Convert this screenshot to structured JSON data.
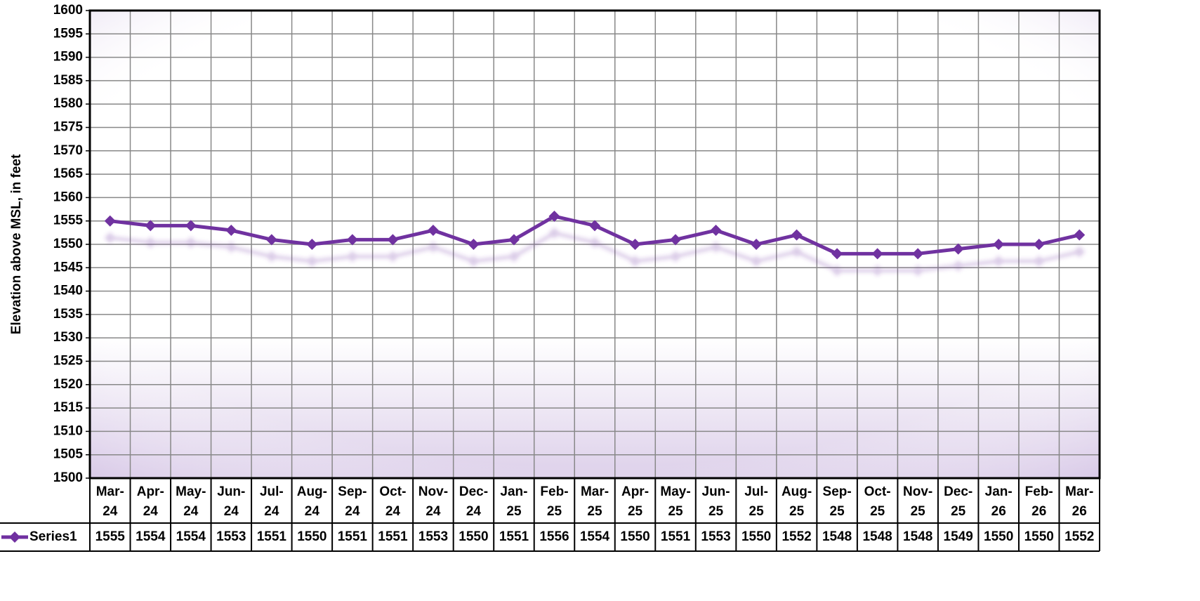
{
  "chart_data": {
    "type": "line",
    "y_label": "Elevation above MSL, in feet",
    "categories": [
      "Mar-24",
      "Apr-24",
      "May-24",
      "Jun-24",
      "Jul-24",
      "Aug-24",
      "Sep-24",
      "Oct-24",
      "Nov-24",
      "Dec-24",
      "Jan-25",
      "Feb-25",
      "Mar-25",
      "Apr-25",
      "May-25",
      "Jun-25",
      "Jul-25",
      "Aug-25",
      "Sep-25",
      "Oct-25",
      "Nov-25",
      "Dec-25",
      "Jan-26",
      "Feb-26",
      "Mar-26"
    ],
    "series": [
      {
        "name": "Series1",
        "color": "#7030a0",
        "values": [
          1555,
          1554,
          1554,
          1553,
          1551,
          1550,
          1551,
          1551,
          1553,
          1550,
          1551,
          1556,
          1554,
          1550,
          1551,
          1553,
          1550,
          1552,
          1548,
          1548,
          1548,
          1549,
          1550,
          1550,
          1552
        ]
      }
    ],
    "ylim": [
      1500,
      1600
    ],
    "yticks": [
      1500,
      1505,
      1510,
      1515,
      1520,
      1525,
      1530,
      1535,
      1540,
      1545,
      1550,
      1555,
      1560,
      1565,
      1570,
      1575,
      1580,
      1585,
      1590,
      1595,
      1600
    ],
    "grid": true
  }
}
